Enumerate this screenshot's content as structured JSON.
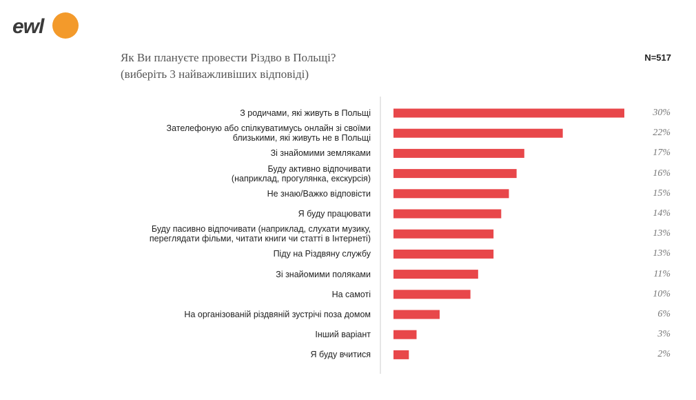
{
  "brand": "ewl",
  "chart_data": {
    "type": "barh",
    "title": "Як Ви плануєте провести Різдво в Польщі?",
    "subtitle": "(виберіть 3 найважливіших відповіді)",
    "note": "N=517",
    "color": "#e8474a",
    "categories": [
      "З родичами, які живуть в Польщі",
      "Зателефоную або спілкуватимусь онлайн зі своїми\nблизькими, які живуть не в Польщі",
      "Зі знайомими земляками",
      "Буду активно відпочивати\n(наприклад, прогулянка, екскурсія)",
      "Не знаю/Важко відповісти",
      "Я буду працювати",
      "Буду пасивно відпочивати (наприклад, слухати музику,\nпереглядати фільми, читати книги чи статті в Інтернеті)",
      "Піду на Різдвяну службу",
      "Зі знайомими поляками",
      "На самоті",
      "На організованій різдвяній зустрічі поза домом",
      "Інший варіант",
      "Я буду вчитися"
    ],
    "values": [
      30,
      22,
      17,
      16,
      15,
      14,
      13,
      13,
      11,
      10,
      6,
      3,
      2
    ],
    "value_labels": [
      "30%",
      "22%",
      "17%",
      "16%",
      "15%",
      "14%",
      "13%",
      "13%",
      "11%",
      "10%",
      "6%",
      "3%",
      "2%"
    ]
  }
}
